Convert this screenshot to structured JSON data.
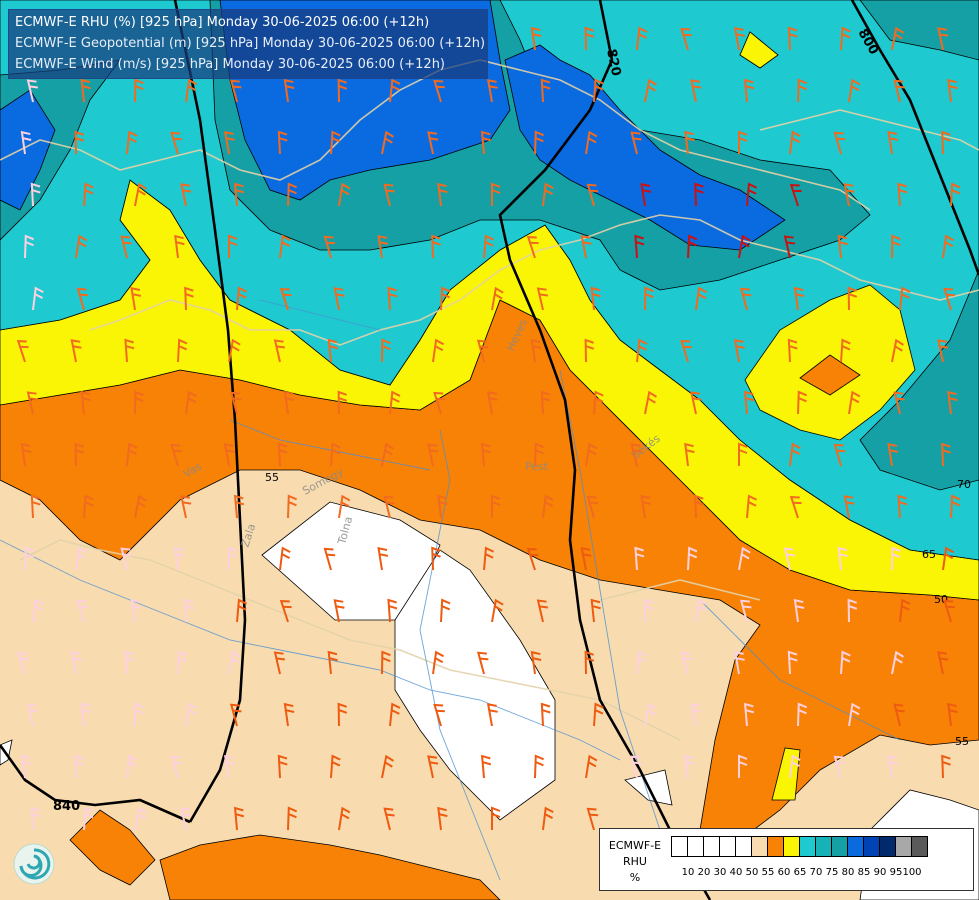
{
  "header": {
    "line1": "ECMWF-E RHU (%) [925 hPa] Monday 30-06-2025 06:00 (+12h)",
    "line2": "ECMWF-E Geopotential (m) [925 hPa] Monday 30-06-2025 06:00 (+12h)",
    "line3": "ECMWF-E Wind (m/s) [925 hPa] Monday 30-06-2025 06:00 (+12h)"
  },
  "legend": {
    "title_model": "ECMWF-E",
    "title_var": "RHU",
    "title_unit": "%",
    "colors": [
      "#ffffff",
      "#ffffff",
      "#ffffff",
      "#ffffff",
      "#ffffff",
      "#f8dcb0",
      "#f78205",
      "#f9f505",
      "#1ec9cf",
      "#17b2b8",
      "#15a0a6",
      "#0a6adf",
      "#0043b5",
      "#002a6c",
      "#a8a8a8",
      "#5a5a5a"
    ],
    "labels": [
      "10",
      "20",
      "30",
      "40",
      "50",
      "55",
      "60",
      "65",
      "70",
      "75",
      "80",
      "85",
      "90",
      "95",
      "100"
    ]
  },
  "map": {
    "colors": {
      "orange": "#f78205",
      "yellow": "#f9f505",
      "cyan": "#1ec9cf",
      "teal": "#17a8ae",
      "blue": "#0a6adf",
      "tan": "#f8dcb0",
      "white": "#ffffff"
    },
    "geopotential_labels": [
      "820",
      "800",
      "840"
    ],
    "rhu_labels": [
      "55",
      "70",
      "65",
      "50",
      "55"
    ],
    "place_labels": [
      "Vas",
      "Somogy",
      "Zala",
      "Tolna",
      "Pest",
      "Heves",
      "Békés"
    ]
  }
}
